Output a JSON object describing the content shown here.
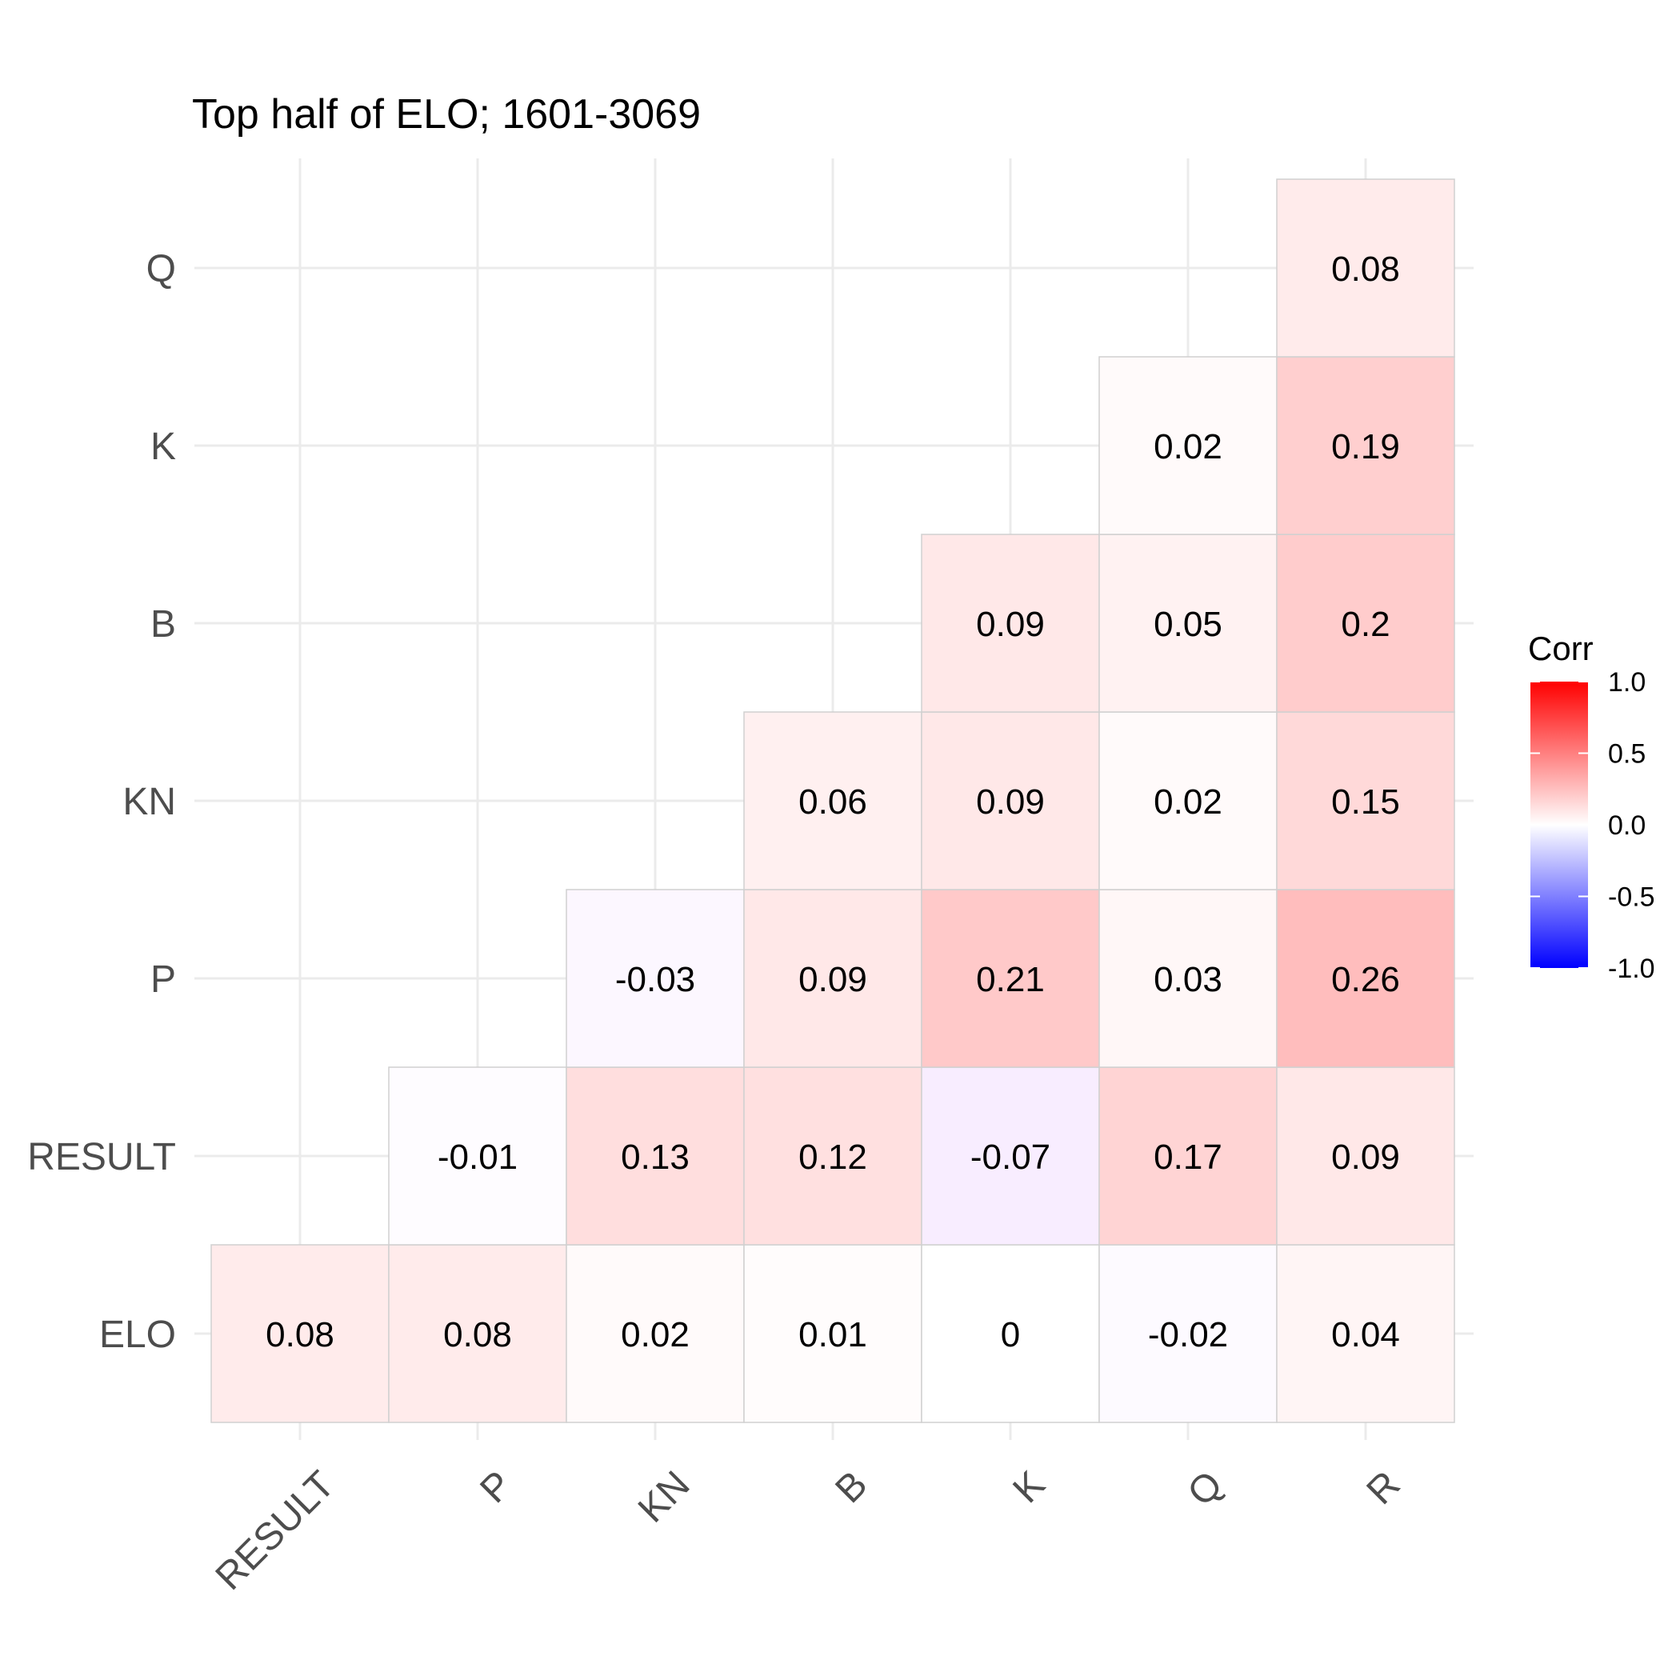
{
  "chart_data": {
    "type": "heatmap",
    "title": "Top half of ELO; 1601-3069",
    "x_categories": [
      "RESULT",
      "P",
      "KN",
      "B",
      "K",
      "Q",
      "R"
    ],
    "y_categories": [
      "ELO",
      "RESULT",
      "P",
      "KN",
      "B",
      "K",
      "Q"
    ],
    "cells": [
      {
        "x": "RESULT",
        "y": "ELO",
        "value": 0.08,
        "label": "0.08"
      },
      {
        "x": "P",
        "y": "ELO",
        "value": 0.08,
        "label": "0.08"
      },
      {
        "x": "KN",
        "y": "ELO",
        "value": 0.02,
        "label": "0.02"
      },
      {
        "x": "B",
        "y": "ELO",
        "value": 0.01,
        "label": "0.01"
      },
      {
        "x": "K",
        "y": "ELO",
        "value": 0,
        "label": "0"
      },
      {
        "x": "Q",
        "y": "ELO",
        "value": -0.02,
        "label": "-0.02"
      },
      {
        "x": "R",
        "y": "ELO",
        "value": 0.04,
        "label": "0.04"
      },
      {
        "x": "P",
        "y": "RESULT",
        "value": -0.01,
        "label": "-0.01"
      },
      {
        "x": "KN",
        "y": "RESULT",
        "value": 0.13,
        "label": "0.13"
      },
      {
        "x": "B",
        "y": "RESULT",
        "value": 0.12,
        "label": "0.12"
      },
      {
        "x": "K",
        "y": "RESULT",
        "value": -0.07,
        "label": "-0.07"
      },
      {
        "x": "Q",
        "y": "RESULT",
        "value": 0.17,
        "label": "0.17"
      },
      {
        "x": "R",
        "y": "RESULT",
        "value": 0.09,
        "label": "0.09"
      },
      {
        "x": "KN",
        "y": "P",
        "value": -0.03,
        "label": "-0.03"
      },
      {
        "x": "B",
        "y": "P",
        "value": 0.09,
        "label": "0.09"
      },
      {
        "x": "K",
        "y": "P",
        "value": 0.21,
        "label": "0.21"
      },
      {
        "x": "Q",
        "y": "P",
        "value": 0.03,
        "label": "0.03"
      },
      {
        "x": "R",
        "y": "P",
        "value": 0.26,
        "label": "0.26"
      },
      {
        "x": "B",
        "y": "KN",
        "value": 0.06,
        "label": "0.06"
      },
      {
        "x": "K",
        "y": "KN",
        "value": 0.09,
        "label": "0.09"
      },
      {
        "x": "Q",
        "y": "KN",
        "value": 0.02,
        "label": "0.02"
      },
      {
        "x": "R",
        "y": "KN",
        "value": 0.15,
        "label": "0.15"
      },
      {
        "x": "K",
        "y": "B",
        "value": 0.09,
        "label": "0.09"
      },
      {
        "x": "Q",
        "y": "B",
        "value": 0.05,
        "label": "0.05"
      },
      {
        "x": "R",
        "y": "B",
        "value": 0.2,
        "label": "0.2"
      },
      {
        "x": "Q",
        "y": "K",
        "value": 0.02,
        "label": "0.02"
      },
      {
        "x": "R",
        "y": "K",
        "value": 0.19,
        "label": "0.19"
      },
      {
        "x": "R",
        "y": "Q",
        "value": 0.08,
        "label": "0.08"
      }
    ],
    "legend": {
      "title": "Corr",
      "position": "right",
      "ticks": [
        "1.0",
        "0.5",
        "0.0",
        "-0.5",
        "-1.0"
      ],
      "tick_values": [
        1.0,
        0.5,
        0.0,
        -0.5,
        -1.0
      ],
      "range": [
        -1,
        1
      ]
    },
    "colors": {
      "low": "#0000ff",
      "mid": "#ffffff",
      "high": "#ff0000"
    },
    "grid": true
  }
}
